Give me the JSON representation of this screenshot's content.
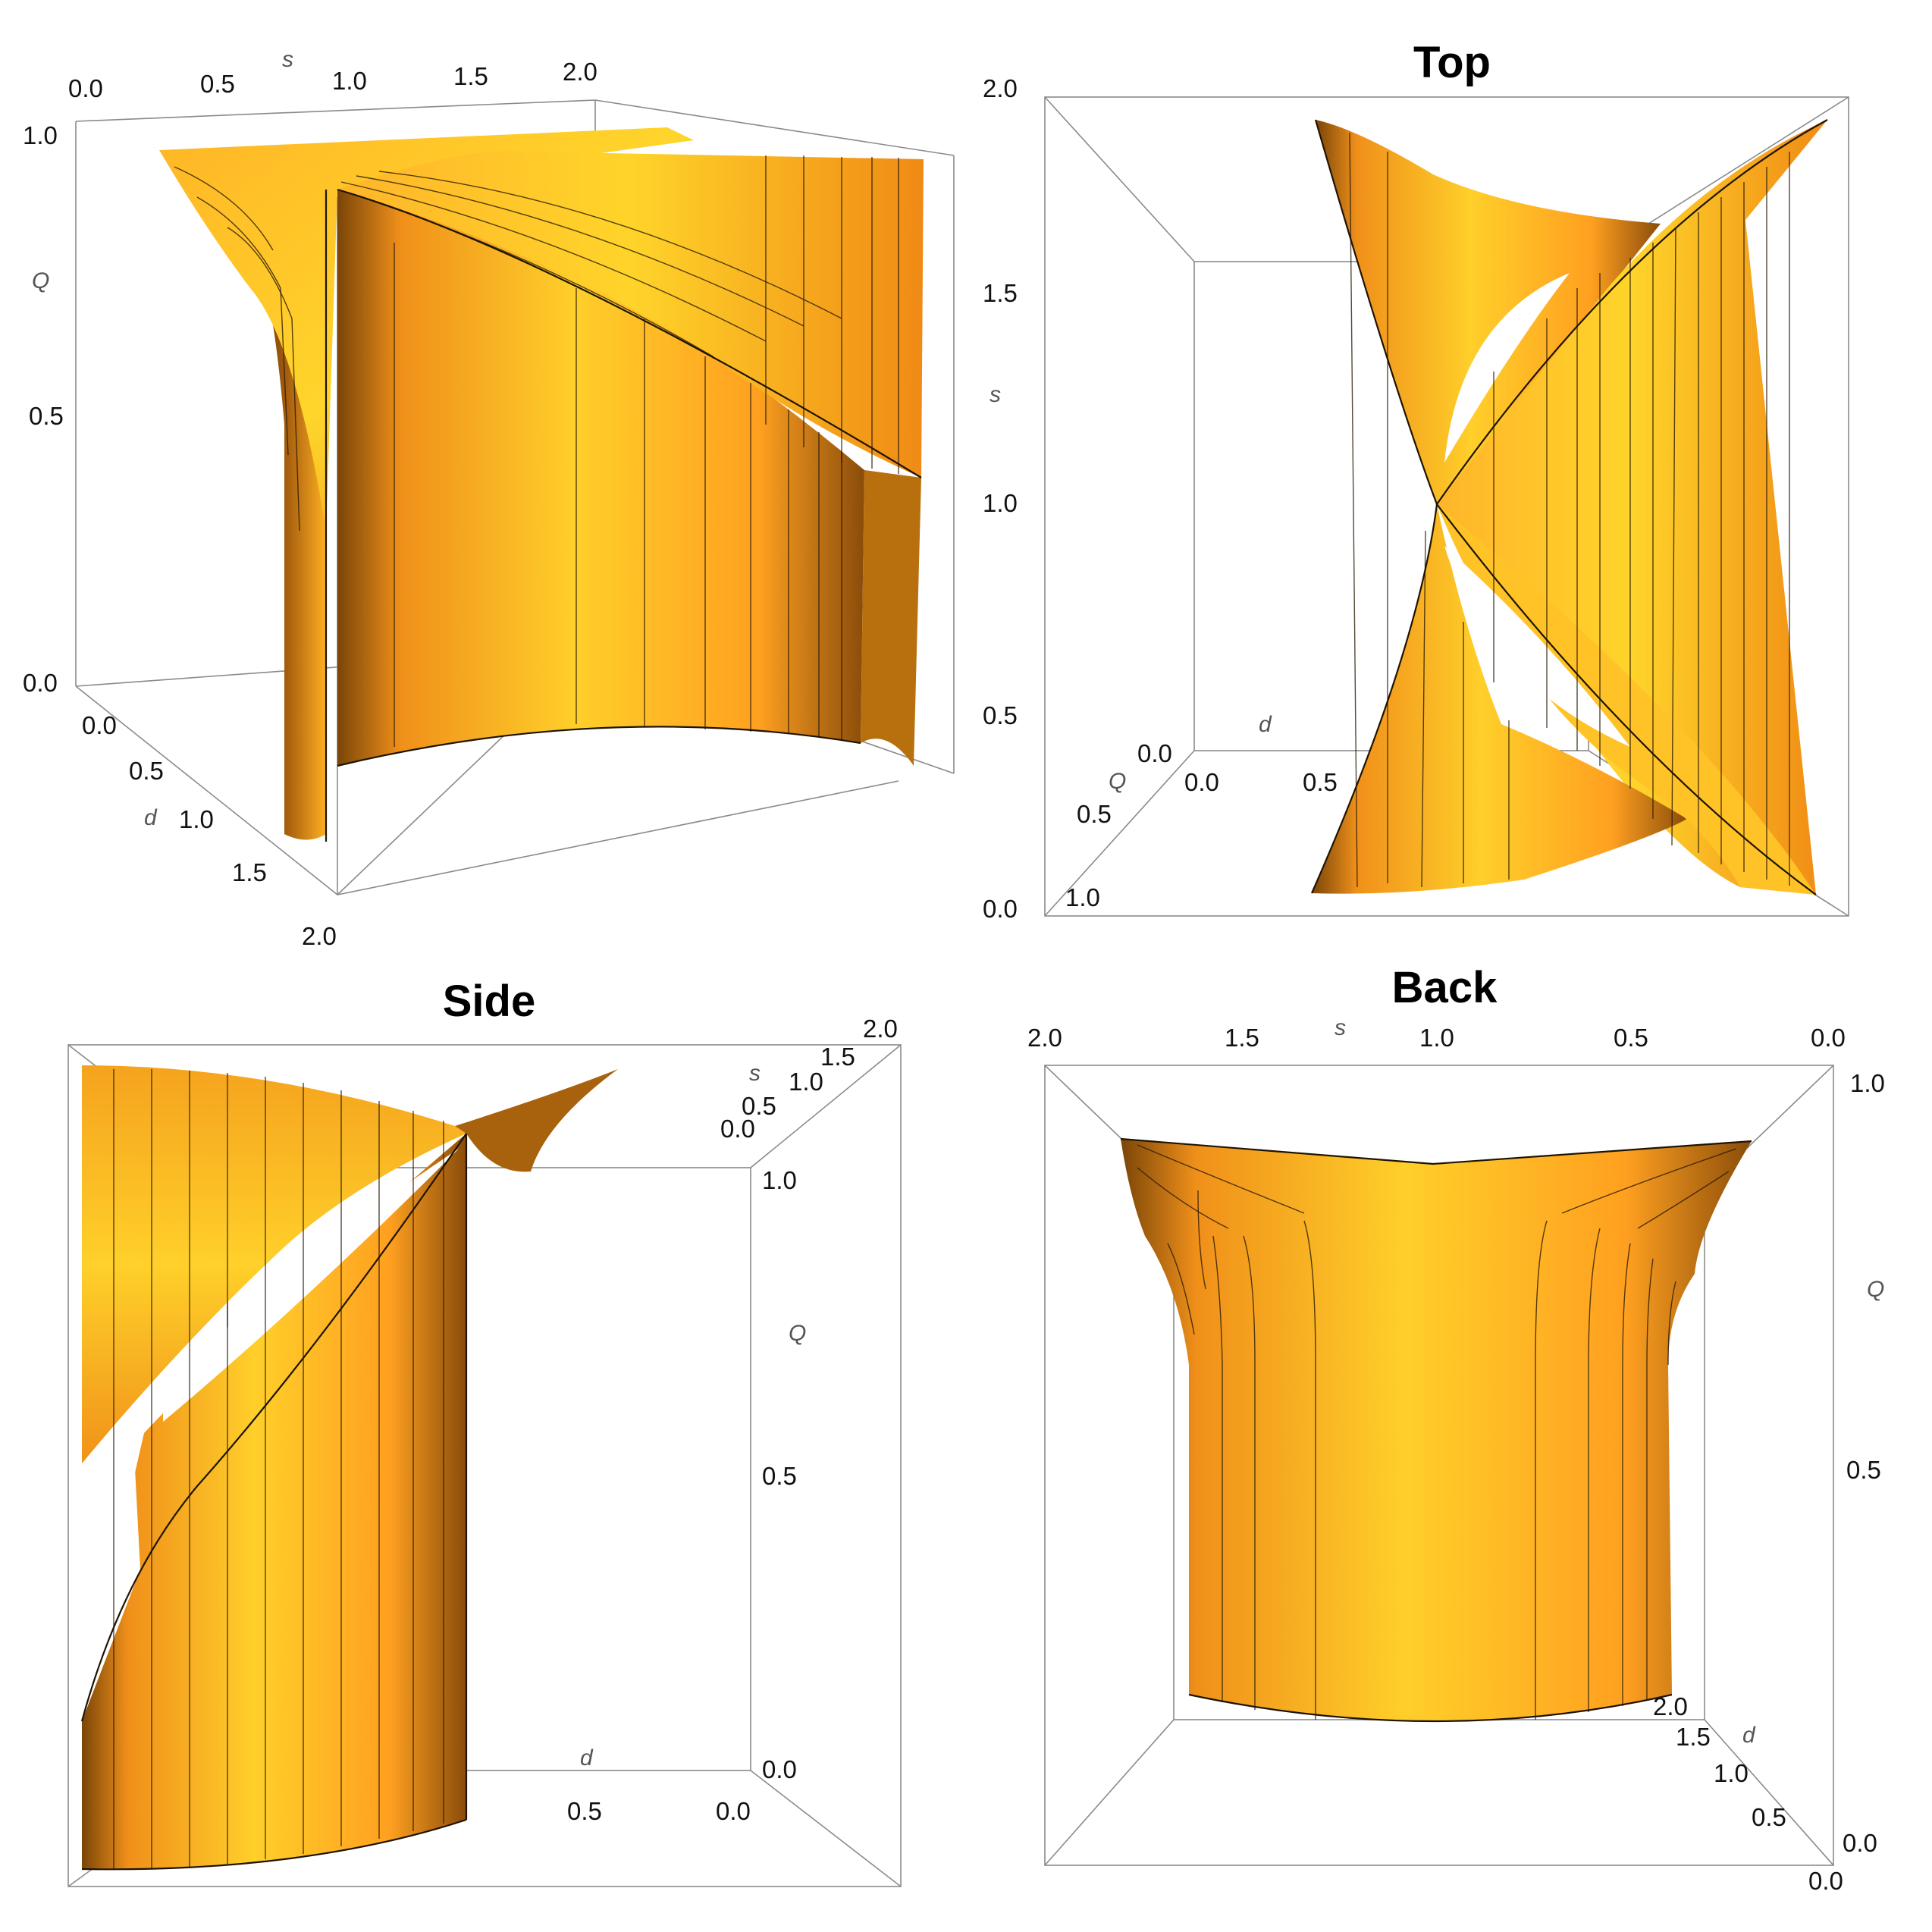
{
  "panels": [
    {
      "id": "iso",
      "title": "",
      "s_label": "s",
      "q_label": "Q",
      "d_label": "d",
      "s_ticks": [
        "0.0",
        "0.5",
        "1.0",
        "1.5",
        "2.0"
      ],
      "q_ticks": [
        "0.0",
        "0.5",
        "1.0"
      ],
      "d_ticks": [
        "0.0",
        "0.5",
        "1.0",
        "1.5",
        "2.0"
      ]
    },
    {
      "id": "top",
      "title": "Top",
      "s_label": "s",
      "q_label": "Q",
      "d_label": "d",
      "s_ticks": [
        "0.0",
        "0.5",
        "1.0",
        "1.5",
        "2.0"
      ],
      "q_ticks": [
        "0.0",
        "0.5",
        "1.0"
      ],
      "d_ticks": [
        "0.0",
        "0.5"
      ]
    },
    {
      "id": "side",
      "title": "Side",
      "s_label": "s",
      "q_label": "Q",
      "d_label": "d",
      "s_ticks": [
        "0.0",
        "0.5",
        "1.0",
        "1.5",
        "2.0"
      ],
      "q_ticks": [
        "0.0",
        "0.5",
        "1.0"
      ],
      "d_ticks": [
        "0.5",
        "0.0"
      ]
    },
    {
      "id": "back",
      "title": "Back",
      "s_label": "s",
      "q_label": "Q",
      "d_label": "d",
      "s_ticks": [
        "2.0",
        "1.5",
        "1.0",
        "0.5",
        "0.0"
      ],
      "q_ticks": [
        "0.0",
        "0.5",
        "1.0"
      ],
      "d_ticks": [
        "2.0",
        "1.5",
        "1.0",
        "0.5",
        "0.0"
      ]
    }
  ],
  "colors": {
    "surface_light": "#ffd42a",
    "surface_mid": "#ffa41b",
    "surface_dark": "#6b3c08",
    "mesh": "#2a1c06",
    "box": "#8a8a8a"
  }
}
